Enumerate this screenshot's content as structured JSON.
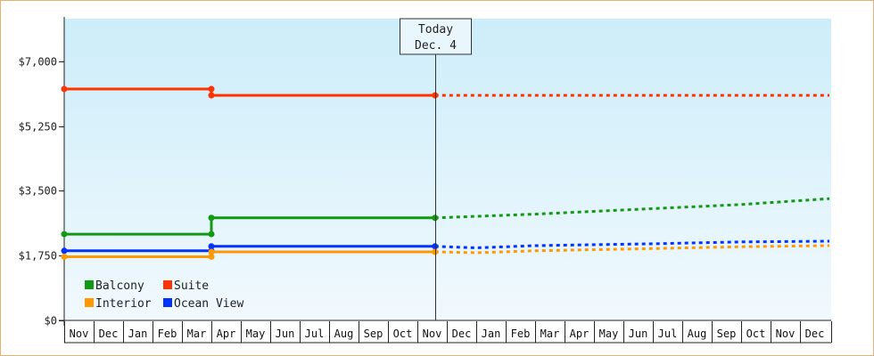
{
  "chart_data": {
    "type": "line",
    "y_ticks": [
      "$0",
      "$1,750",
      "$3,500",
      "$5,250",
      "$7,000"
    ],
    "y_tick_values": [
      0,
      1750,
      3500,
      5250,
      7000
    ],
    "ylim": [
      0,
      8150
    ],
    "months": [
      "Nov",
      "Dec",
      "Jan",
      "Feb",
      "Mar",
      "Apr",
      "May",
      "Jun",
      "Jul",
      "Aug",
      "Sep",
      "Oct",
      "Nov",
      "Dec",
      "Jan",
      "Feb",
      "Mar",
      "Apr",
      "May",
      "Jun",
      "Jul",
      "Aug",
      "Sep",
      "Oct",
      "Nov",
      "Dec"
    ],
    "today": {
      "label": "Today",
      "date": "Dec. 4",
      "month_index": 12.6
    },
    "series": [
      {
        "name": "Suite",
        "color": "#ff3300",
        "history": [
          [
            0,
            6250
          ],
          [
            5,
            6250
          ],
          [
            5,
            6080
          ],
          [
            12.6,
            6080
          ]
        ],
        "forecast": [
          [
            12.6,
            6080
          ],
          [
            26,
            6080
          ]
        ]
      },
      {
        "name": "Balcony",
        "color": "#119911",
        "history": [
          [
            0,
            2330
          ],
          [
            5,
            2330
          ],
          [
            5,
            2770
          ],
          [
            12.6,
            2770
          ]
        ],
        "forecast": [
          [
            12.6,
            2770
          ],
          [
            16,
            2870
          ],
          [
            20,
            3020
          ],
          [
            23,
            3130
          ],
          [
            26,
            3290
          ]
        ]
      },
      {
        "name": "Ocean View",
        "color": "#0033ff",
        "history": [
          [
            0,
            1880
          ],
          [
            5,
            1880
          ],
          [
            5,
            2000
          ],
          [
            12.6,
            2000
          ]
        ],
        "forecast": [
          [
            12.6,
            2000
          ],
          [
            14,
            1960
          ],
          [
            16,
            2020
          ],
          [
            20,
            2070
          ],
          [
            23,
            2120
          ],
          [
            26,
            2140
          ]
        ]
      },
      {
        "name": "Interior",
        "color": "#ff9900",
        "history": [
          [
            0,
            1720
          ],
          [
            5,
            1720
          ],
          [
            5,
            1850
          ],
          [
            12.6,
            1850
          ]
        ],
        "forecast": [
          [
            12.6,
            1850
          ],
          [
            14,
            1830
          ],
          [
            16,
            1880
          ],
          [
            20,
            1940
          ],
          [
            23,
            1990
          ],
          [
            26,
            2020
          ]
        ]
      }
    ],
    "legend": [
      {
        "name": "Balcony",
        "color": "#119911"
      },
      {
        "name": "Suite",
        "color": "#ff3300"
      },
      {
        "name": "Interior",
        "color": "#ff9900"
      },
      {
        "name": "Ocean View",
        "color": "#0033ff"
      }
    ],
    "legend_position": "bottom-left",
    "grid": false
  }
}
